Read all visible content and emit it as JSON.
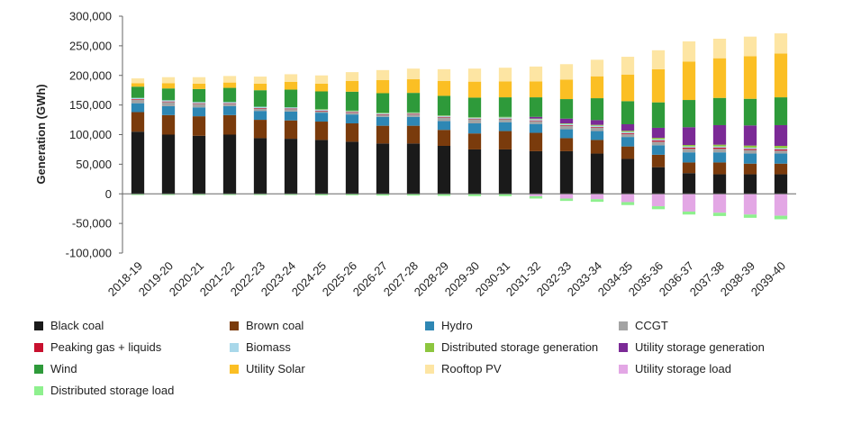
{
  "chart_data": {
    "type": "bar",
    "stacked": true,
    "ylabel": "Generation (GWh)",
    "xlabel": "",
    "ylim": [
      -100000,
      300000
    ],
    "yticks": [
      -100000,
      -50000,
      0,
      50000,
      100000,
      150000,
      200000,
      250000,
      300000
    ],
    "ytick_labels": [
      "-100,000",
      "-50,000",
      "0",
      "50,000",
      "100,000",
      "150,000",
      "200,000",
      "250,000",
      "300,000"
    ],
    "grid": false,
    "legend_position": "bottom",
    "categories": [
      "2018-19",
      "2019-20",
      "2020-21",
      "2021-22",
      "2022-23",
      "2023-24",
      "2024-25",
      "2025-26",
      "2026-27",
      "2027-28",
      "2028-29",
      "2029-30",
      "2030-31",
      "2031-32",
      "2032-33",
      "2033-34",
      "2034-35",
      "2035-36",
      "2036-37",
      "2037-38",
      "2038-39",
      "2039-40"
    ],
    "series": [
      {
        "name": "Black coal",
        "color": "#1a1a1a",
        "values": [
          105000,
          100000,
          98000,
          100000,
          94000,
          93000,
          91000,
          88000,
          85000,
          85000,
          81000,
          75000,
          75000,
          72000,
          72000,
          68000,
          59000,
          45000,
          35000,
          33000,
          33000,
          33000
        ]
      },
      {
        "name": "Brown coal",
        "color": "#7a3b0c",
        "values": [
          33000,
          33000,
          33000,
          33000,
          31000,
          31000,
          31000,
          31000,
          30000,
          30000,
          27000,
          27000,
          31000,
          31000,
          22000,
          23000,
          21000,
          21000,
          18000,
          20000,
          18000,
          18000
        ]
      },
      {
        "name": "Hydro",
        "color": "#2e87b4",
        "values": [
          15000,
          15000,
          15000,
          15000,
          15000,
          15000,
          15000,
          15000,
          15000,
          15000,
          15000,
          17000,
          15000,
          15000,
          15000,
          15000,
          16000,
          16000,
          17000,
          17000,
          17000,
          17000
        ]
      },
      {
        "name": "CCGT",
        "color": "#a3a3a3",
        "values": [
          6000,
          7000,
          6000,
          4000,
          4000,
          4000,
          2500,
          3000,
          3500,
          4000,
          6000,
          7000,
          5000,
          5000,
          6000,
          6000,
          5000,
          6000,
          6000,
          6000,
          6000,
          5000
        ]
      },
      {
        "name": "Peaking gas + liquids",
        "color": "#c8102e",
        "values": [
          1000,
          1000,
          1000,
          1000,
          1000,
          1000,
          1000,
          1000,
          1000,
          1000,
          1000,
          1000,
          1000,
          1000,
          1000,
          1000,
          1500,
          2000,
          2000,
          2000,
          2000,
          2000
        ]
      },
      {
        "name": "Biomass",
        "color": "#a9d8ea",
        "values": [
          2000,
          2000,
          2000,
          2000,
          2000,
          2000,
          2000,
          2000,
          2000,
          2000,
          2000,
          2000,
          2000,
          2000,
          2000,
          2000,
          2000,
          2000,
          2000,
          2000,
          2000,
          2000
        ]
      },
      {
        "name": "Distributed storage generation",
        "color": "#8dc63f",
        "values": [
          0,
          0,
          0,
          0,
          0,
          0,
          500,
          500,
          500,
          500,
          500,
          500,
          1000,
          1000,
          1000,
          1500,
          2000,
          2500,
          2500,
          3000,
          3500,
          4000
        ]
      },
      {
        "name": "Utility storage generation",
        "color": "#7b2a96",
        "values": [
          0,
          0,
          0,
          0,
          0,
          0,
          0,
          0,
          0,
          0,
          0,
          0,
          0,
          3000,
          8000,
          8000,
          11000,
          17000,
          30000,
          33000,
          34000,
          35000
        ]
      },
      {
        "name": "Wind",
        "color": "#2e9a3a",
        "values": [
          19000,
          20000,
          22000,
          24000,
          28000,
          30000,
          30000,
          32000,
          33000,
          33000,
          33000,
          33000,
          33000,
          33000,
          33000,
          37000,
          39000,
          43000,
          46000,
          46000,
          45000,
          47000
        ]
      },
      {
        "name": "Utility Solar",
        "color": "#fbbf24",
        "values": [
          6000,
          9000,
          9000,
          9000,
          11000,
          13000,
          13000,
          18000,
          22000,
          23000,
          25000,
          27000,
          27000,
          27000,
          33000,
          37000,
          45000,
          56000,
          65000,
          67000,
          72000,
          74000
        ]
      },
      {
        "name": "Rooftop PV",
        "color": "#fde5a3",
        "values": [
          8000,
          10000,
          11000,
          11000,
          12000,
          13000,
          14000,
          15000,
          17000,
          18000,
          20000,
          22000,
          23000,
          25000,
          26000,
          28000,
          30000,
          32000,
          34000,
          33000,
          33000,
          34000
        ]
      },
      {
        "name": "Utility storage load",
        "color": "#e3a7e5",
        "values": [
          0,
          0,
          0,
          0,
          0,
          0,
          0,
          0,
          0,
          0,
          0,
          0,
          0,
          -4000,
          -8000,
          -9000,
          -14000,
          -21000,
          -30000,
          -32000,
          -35000,
          -37000
        ]
      },
      {
        "name": "Distributed storage load",
        "color": "#8ef08e",
        "values": [
          -2000,
          -2000,
          -2000,
          -2000,
          -2000,
          -2000,
          -2500,
          -2500,
          -3000,
          -3000,
          -3500,
          -4000,
          -4000,
          -4000,
          -4000,
          -4500,
          -5000,
          -5000,
          -5000,
          -5500,
          -5500,
          -6000
        ]
      }
    ]
  }
}
